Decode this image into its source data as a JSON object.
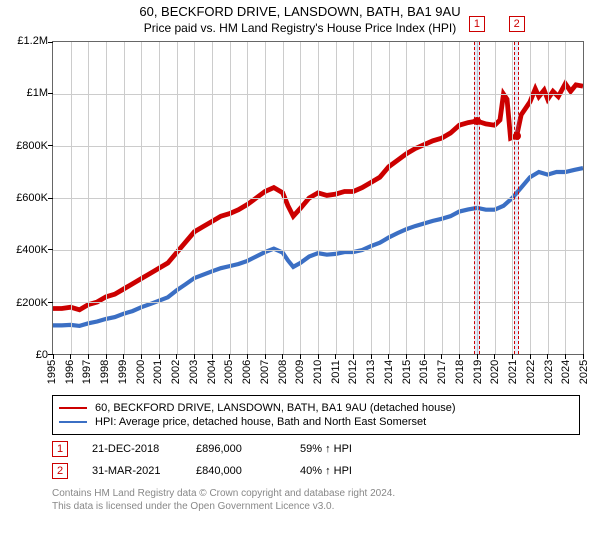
{
  "title": {
    "main": "60, BECKFORD DRIVE, LANSDOWN, BATH, BA1 9AU",
    "sub": "Price paid vs. HM Land Registry's House Price Index (HPI)"
  },
  "chart": {
    "type": "line",
    "background_color": "#ffffff",
    "grid_color": "#cccccc",
    "border_color": "#666666",
    "xlim": [
      1995,
      2025
    ],
    "ylim": [
      0,
      1200000
    ],
    "yticks": [
      0,
      200000,
      400000,
      600000,
      800000,
      1000000,
      1200000
    ],
    "ytick_labels": [
      "£0",
      "£200K",
      "£400K",
      "£600K",
      "£800K",
      "£1M",
      "£1.2M"
    ],
    "xticks": [
      1995,
      1996,
      1997,
      1998,
      1999,
      2000,
      2001,
      2002,
      2003,
      2004,
      2005,
      2006,
      2007,
      2008,
      2009,
      2010,
      2011,
      2012,
      2013,
      2014,
      2015,
      2016,
      2017,
      2018,
      2019,
      2020,
      2021,
      2022,
      2023,
      2024,
      2025
    ],
    "grid_every_x": 1,
    "label_fontsize": 11,
    "series": [
      {
        "name": "property",
        "color": "#cc0000",
        "width": 1.6,
        "legend_label": "60, BECKFORD DRIVE, LANSDOWN, BATH, BA1 9AU (detached house)",
        "data": [
          [
            1995,
            175000
          ],
          [
            1995.5,
            175000
          ],
          [
            1996,
            180000
          ],
          [
            1996.5,
            170000
          ],
          [
            1997,
            190000
          ],
          [
            1997.5,
            200000
          ],
          [
            1998,
            220000
          ],
          [
            1998.5,
            230000
          ],
          [
            1999,
            250000
          ],
          [
            1999.5,
            270000
          ],
          [
            2000,
            290000
          ],
          [
            2000.5,
            310000
          ],
          [
            2001,
            330000
          ],
          [
            2001.5,
            350000
          ],
          [
            2002,
            390000
          ],
          [
            2002.5,
            430000
          ],
          [
            2003,
            470000
          ],
          [
            2003.5,
            490000
          ],
          [
            2004,
            510000
          ],
          [
            2004.5,
            530000
          ],
          [
            2005,
            540000
          ],
          [
            2005.5,
            555000
          ],
          [
            2006,
            575000
          ],
          [
            2006.5,
            600000
          ],
          [
            2007,
            625000
          ],
          [
            2007.5,
            640000
          ],
          [
            2008,
            620000
          ],
          [
            2008.3,
            570000
          ],
          [
            2008.6,
            530000
          ],
          [
            2009,
            560000
          ],
          [
            2009.5,
            600000
          ],
          [
            2010,
            620000
          ],
          [
            2010.5,
            610000
          ],
          [
            2011,
            615000
          ],
          [
            2011.5,
            625000
          ],
          [
            2012,
            625000
          ],
          [
            2012.5,
            640000
          ],
          [
            2013,
            660000
          ],
          [
            2013.5,
            680000
          ],
          [
            2014,
            720000
          ],
          [
            2014.5,
            745000
          ],
          [
            2015,
            770000
          ],
          [
            2015.5,
            790000
          ],
          [
            2016,
            805000
          ],
          [
            2016.5,
            820000
          ],
          [
            2017,
            830000
          ],
          [
            2017.5,
            850000
          ],
          [
            2018,
            880000
          ],
          [
            2018.5,
            890000
          ],
          [
            2019,
            896000
          ],
          [
            2019.5,
            885000
          ],
          [
            2020,
            880000
          ],
          [
            2020.3,
            900000
          ],
          [
            2020.5,
            1000000
          ],
          [
            2020.7,
            980000
          ],
          [
            2020.9,
            830000
          ],
          [
            2021.25,
            840000
          ],
          [
            2021.5,
            920000
          ],
          [
            2022,
            970000
          ],
          [
            2022.3,
            1020000
          ],
          [
            2022.5,
            990000
          ],
          [
            2022.8,
            1015000
          ],
          [
            2023,
            980000
          ],
          [
            2023.3,
            1010000
          ],
          [
            2023.6,
            990000
          ],
          [
            2024,
            1040000
          ],
          [
            2024.3,
            1010000
          ],
          [
            2024.6,
            1035000
          ],
          [
            2025,
            1030000
          ]
        ]
      },
      {
        "name": "hpi",
        "color": "#3b6fc4",
        "width": 1.4,
        "legend_label": "HPI: Average price, detached house, Bath and North East Somerset",
        "data": [
          [
            1995,
            110000
          ],
          [
            1995.5,
            110000
          ],
          [
            1996,
            112000
          ],
          [
            1996.5,
            108000
          ],
          [
            1997,
            118000
          ],
          [
            1997.5,
            125000
          ],
          [
            1998,
            135000
          ],
          [
            1998.5,
            142000
          ],
          [
            1999,
            155000
          ],
          [
            1999.5,
            165000
          ],
          [
            2000,
            180000
          ],
          [
            2000.5,
            192000
          ],
          [
            2001,
            205000
          ],
          [
            2001.5,
            218000
          ],
          [
            2002,
            245000
          ],
          [
            2002.5,
            268000
          ],
          [
            2003,
            292000
          ],
          [
            2003.5,
            305000
          ],
          [
            2004,
            318000
          ],
          [
            2004.5,
            330000
          ],
          [
            2005,
            338000
          ],
          [
            2005.5,
            346000
          ],
          [
            2006,
            358000
          ],
          [
            2006.5,
            375000
          ],
          [
            2007,
            392000
          ],
          [
            2007.5,
            405000
          ],
          [
            2008,
            390000
          ],
          [
            2008.3,
            360000
          ],
          [
            2008.6,
            335000
          ],
          [
            2009,
            350000
          ],
          [
            2009.5,
            375000
          ],
          [
            2010,
            388000
          ],
          [
            2010.5,
            382000
          ],
          [
            2011,
            385000
          ],
          [
            2011.5,
            392000
          ],
          [
            2012,
            392000
          ],
          [
            2012.5,
            400000
          ],
          [
            2013,
            415000
          ],
          [
            2013.5,
            428000
          ],
          [
            2014,
            448000
          ],
          [
            2014.5,
            465000
          ],
          [
            2015,
            480000
          ],
          [
            2015.5,
            492000
          ],
          [
            2016,
            502000
          ],
          [
            2016.5,
            512000
          ],
          [
            2017,
            520000
          ],
          [
            2017.5,
            530000
          ],
          [
            2018,
            548000
          ],
          [
            2018.5,
            556000
          ],
          [
            2019,
            562000
          ],
          [
            2019.5,
            555000
          ],
          [
            2020,
            555000
          ],
          [
            2020.5,
            570000
          ],
          [
            2021,
            600000
          ],
          [
            2021.5,
            640000
          ],
          [
            2022,
            680000
          ],
          [
            2022.5,
            700000
          ],
          [
            2023,
            690000
          ],
          [
            2023.5,
            700000
          ],
          [
            2024,
            700000
          ],
          [
            2024.5,
            708000
          ],
          [
            2025,
            715000
          ]
        ]
      }
    ],
    "markers": [
      {
        "num": "1",
        "x": 2019.0,
        "y": 896000,
        "band_width": 0.3,
        "dot_color": "#cc0000"
      },
      {
        "num": "2",
        "x": 2021.25,
        "y": 840000,
        "band_width": 0.3,
        "dot_color": "#cc0000"
      }
    ]
  },
  "legend": {
    "row1_label": "60, BECKFORD DRIVE, LANSDOWN, BATH, BA1 9AU (detached house)",
    "row1_color": "#cc0000",
    "row2_label": "HPI: Average price, detached house, Bath and North East Somerset",
    "row2_color": "#3b6fc4"
  },
  "sales": [
    {
      "num": "1",
      "date": "21-DEC-2018",
      "price": "£896,000",
      "hpi": "59% ↑ HPI"
    },
    {
      "num": "2",
      "date": "31-MAR-2021",
      "price": "£840,000",
      "hpi": "40% ↑ HPI"
    }
  ],
  "footer": {
    "l1": "Contains HM Land Registry data © Crown copyright and database right 2024.",
    "l2": "This data is licensed under the Open Government Licence v3.0."
  }
}
